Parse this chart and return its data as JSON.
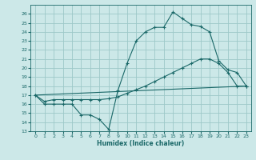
{
  "bg_color": "#cce8e8",
  "grid_color": "#9dc8c8",
  "line_color": "#1a6868",
  "xlabel": "Humidex (Indice chaleur)",
  "xlim": [
    -0.5,
    23.5
  ],
  "ylim": [
    13,
    27
  ],
  "yticks": [
    13,
    14,
    15,
    16,
    17,
    18,
    19,
    20,
    21,
    22,
    23,
    24,
    25,
    26
  ],
  "xticks": [
    0,
    1,
    2,
    3,
    4,
    5,
    6,
    7,
    8,
    9,
    10,
    11,
    12,
    13,
    14,
    15,
    16,
    17,
    18,
    19,
    20,
    21,
    22,
    23
  ],
  "line1_x": [
    0,
    1,
    2,
    3,
    4,
    5,
    6,
    7,
    8,
    9,
    10,
    11,
    12,
    13,
    14,
    15,
    16,
    17,
    18,
    19,
    20,
    21,
    22,
    23
  ],
  "line1_y": [
    17.0,
    16.0,
    16.0,
    16.0,
    16.0,
    14.8,
    14.8,
    14.3,
    13.2,
    17.5,
    20.5,
    23.0,
    24.0,
    24.5,
    24.5,
    26.2,
    25.5,
    24.8,
    24.6,
    24.0,
    20.8,
    19.8,
    19.5,
    18.0
  ],
  "line2_x": [
    0,
    1,
    2,
    3,
    4,
    5,
    6,
    7,
    8,
    9,
    10,
    11,
    12,
    13,
    14,
    15,
    16,
    17,
    18,
    19,
    20,
    21,
    22,
    23
  ],
  "line2_y": [
    17.0,
    16.3,
    16.5,
    16.5,
    16.5,
    16.5,
    16.5,
    16.5,
    16.6,
    16.8,
    17.2,
    17.6,
    18.0,
    18.5,
    19.0,
    19.5,
    20.0,
    20.5,
    21.0,
    21.0,
    20.5,
    19.5,
    18.0,
    18.0
  ],
  "line3_x": [
    0,
    23
  ],
  "line3_y": [
    17.0,
    18.0
  ]
}
